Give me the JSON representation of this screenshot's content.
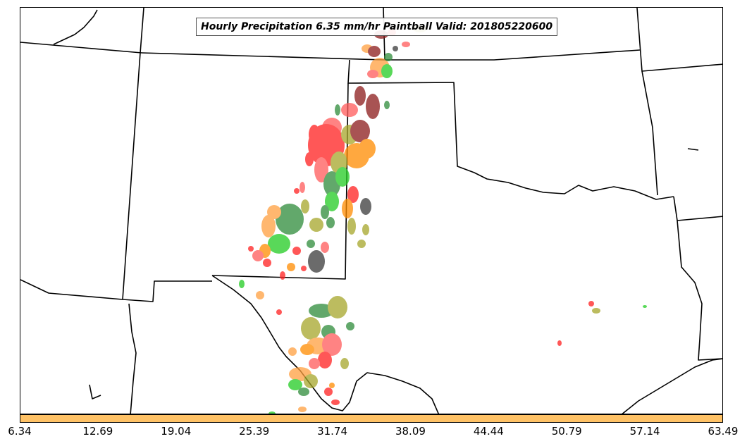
{
  "title": "Hourly Precipitation 6.35 mm/hr Paintball Valid: 201805220600",
  "colorbar": {
    "color": "#FFC266",
    "ticks": [
      "6.34",
      "12.69",
      "19.04",
      "25.39",
      "31.74",
      "38.09",
      "44.44",
      "50.79",
      "57.14",
      "63.49"
    ]
  },
  "palette": {
    "red": "#FF2020",
    "light_red": "#FF5A5A",
    "orange": "#FF8C00",
    "light_orange": "#FFA040",
    "green": "#22CC22",
    "dark_green": "#2E8B3A",
    "olive": "#A6A62A",
    "dark_red": "#8B1A1A",
    "gray": "#3A3A3A",
    "border": "#000000"
  }
}
